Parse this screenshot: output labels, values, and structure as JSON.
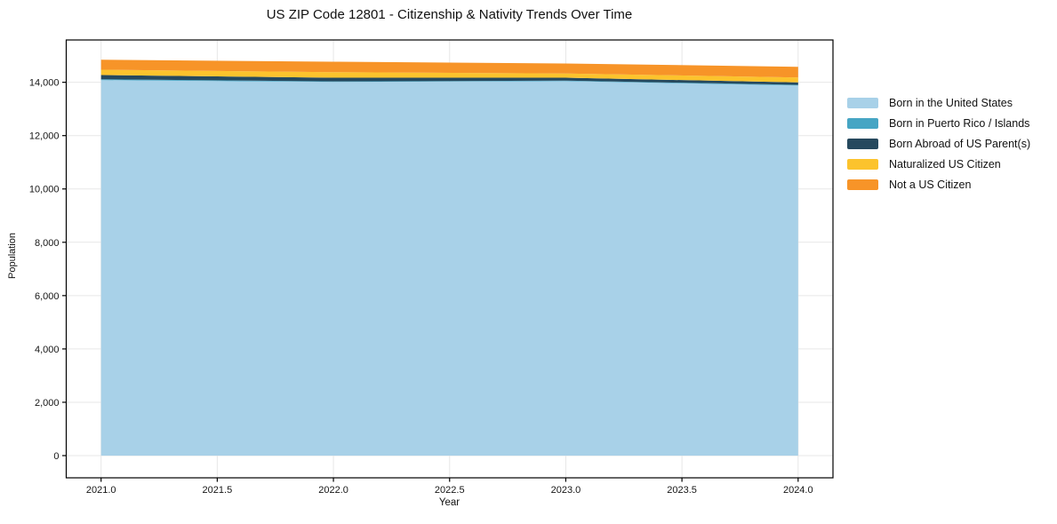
{
  "page": {
    "title": "US ZIP Code 12801 - Citizenship & Nativity Trends Over Time"
  },
  "chart_data": {
    "type": "area",
    "stacked": true,
    "title": "US ZIP Code 12801 - Citizenship & Nativity Trends Over Time",
    "xlabel": "Year",
    "ylabel": "Population",
    "x": [
      2021,
      2022,
      2023,
      2024
    ],
    "series": [
      {
        "name": "Born in the United States",
        "color": "#a8d1e8",
        "values": [
          14080,
          14010,
          14040,
          13880
        ]
      },
      {
        "name": "Born in Puerto Rico / Islands",
        "color": "#46a5c4",
        "values": [
          30,
          25,
          20,
          25
        ]
      },
      {
        "name": "Born Abroad of US Parent(s)",
        "color": "#26495e",
        "values": [
          160,
          135,
          110,
          90
        ]
      },
      {
        "name": "Naturalized US Citizen",
        "color": "#fcc32d",
        "values": [
          200,
          210,
          160,
          185
        ]
      },
      {
        "name": "Not a US Citizen",
        "color": "#f79428",
        "values": [
          375,
          390,
          375,
          400
        ]
      }
    ],
    "totals": [
      14845,
      14770,
      14705,
      14580
    ],
    "x_tick_labels": [
      "2021.0",
      "2021.5",
      "2022.0",
      "2022.5",
      "2023.0",
      "2023.5",
      "2024.0"
    ],
    "x_tick_values": [
      2021.0,
      2021.5,
      2022.0,
      2022.5,
      2023.0,
      2023.5,
      2024.0
    ],
    "y_tick_labels": [
      "0",
      "2,000",
      "4,000",
      "6,000",
      "8,000",
      "10,000",
      "12,000",
      "14,000"
    ],
    "y_tick_values": [
      0,
      2000,
      4000,
      6000,
      8000,
      10000,
      12000,
      14000
    ],
    "xlim": [
      2020.85,
      2024.15
    ],
    "ylim": [
      -833,
      15587
    ],
    "grid": true,
    "grid_color": "#e7e7e7",
    "spine_color": "#000000",
    "legend_position": "right-outside"
  }
}
